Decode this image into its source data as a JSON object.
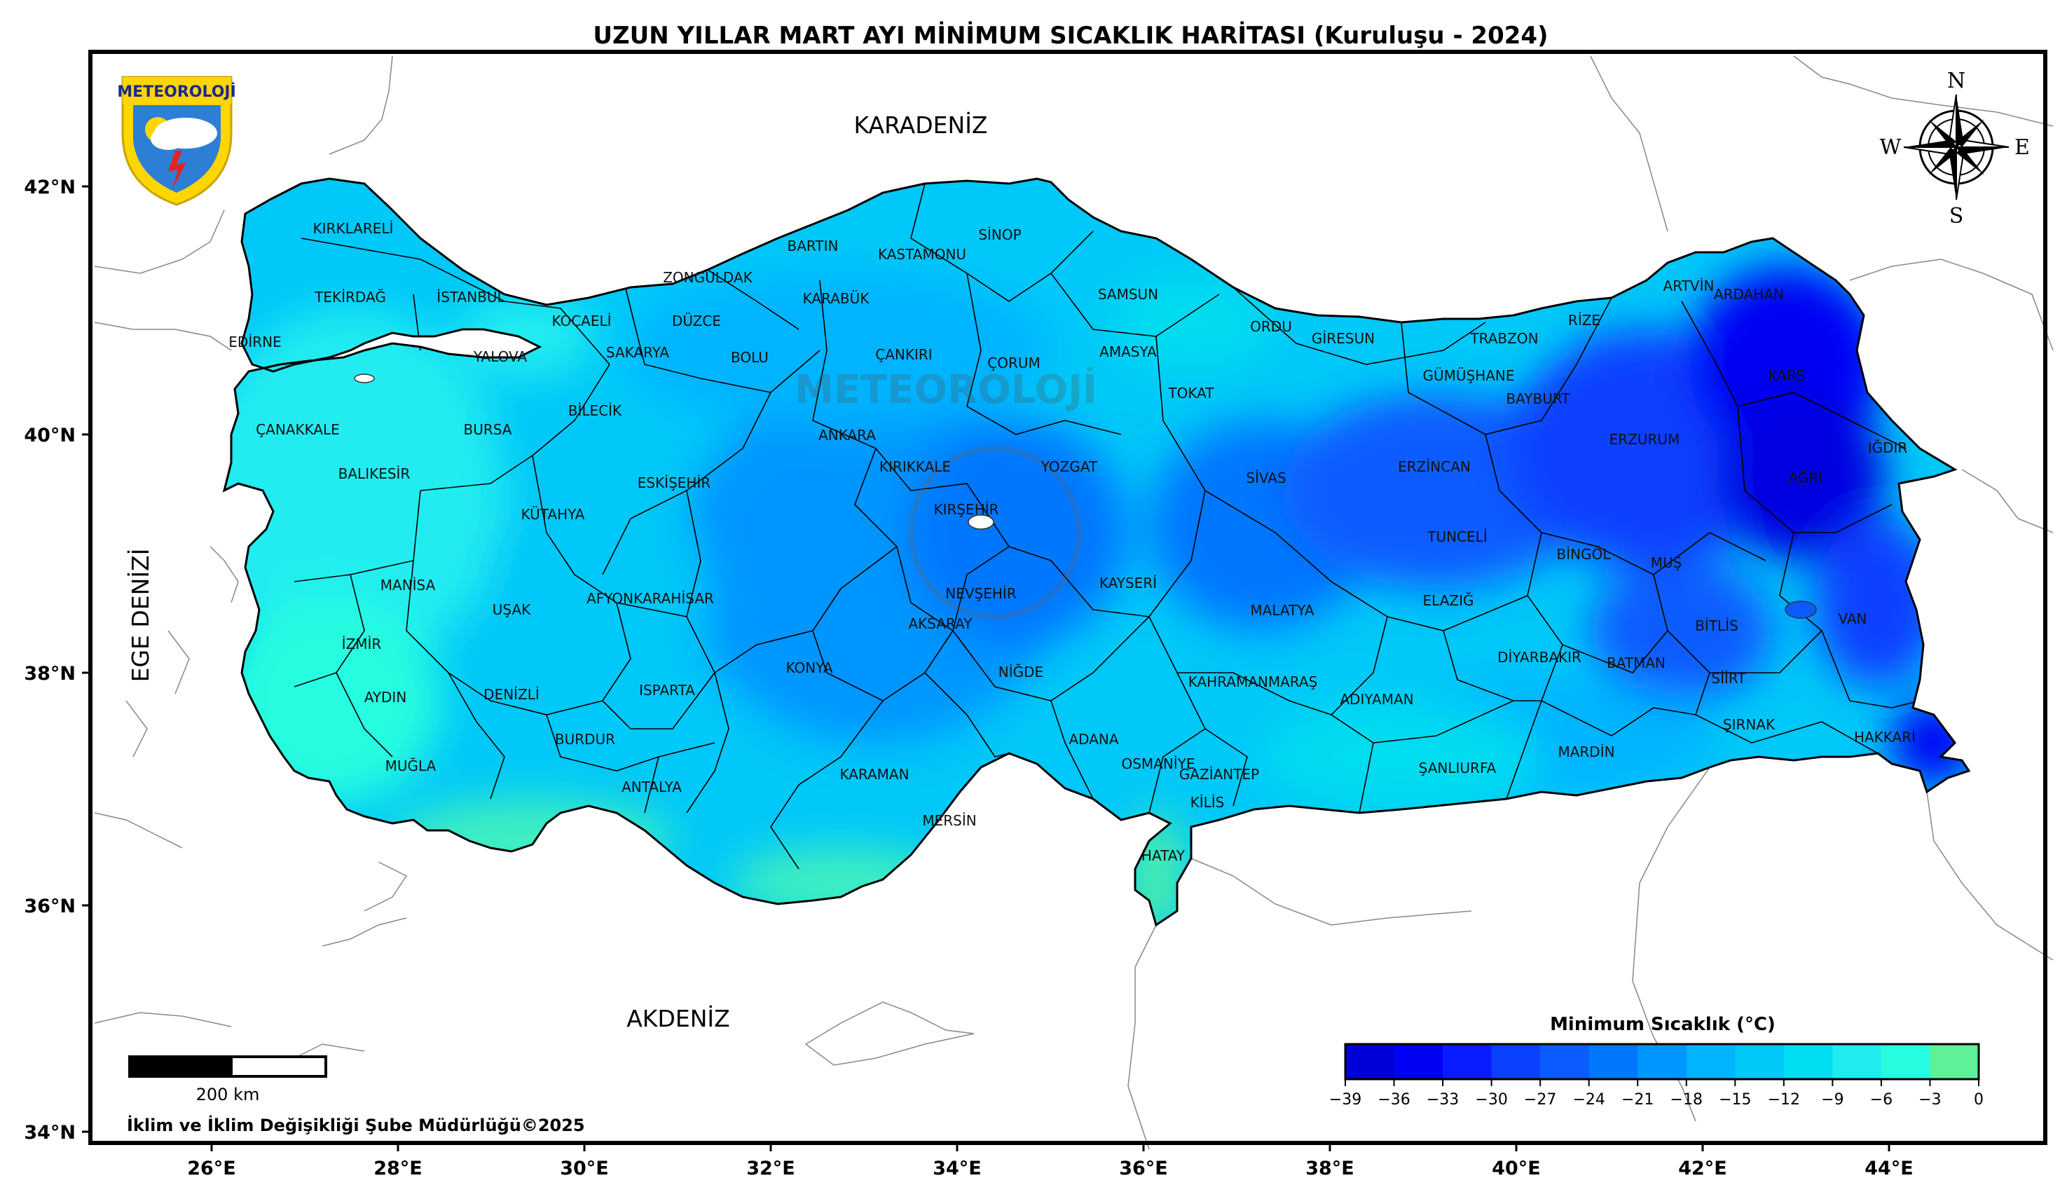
{
  "title": "UZUN YILLAR MART AYI MİNİMUM SICAKLIK HARİTASI (Kuruluşu - 2024)",
  "logo": {
    "text": "METEOROLOJİ",
    "watermark": "METEOROLOJİ"
  },
  "seas": {
    "north": "KARADENİZ",
    "west": "EGE DENİZİ",
    "south": "AKDENİZ"
  },
  "compass": {
    "n": "N",
    "s": "S",
    "e": "E",
    "w": "W"
  },
  "lat_ticks": [
    "42°N",
    "40°N",
    "38°N",
    "36°N",
    "34°N"
  ],
  "lon_ticks": [
    "26°E",
    "28°E",
    "30°E",
    "32°E",
    "34°E",
    "36°E",
    "38°E",
    "40°E",
    "42°E",
    "44°E"
  ],
  "scale_bar": {
    "label": "200 km"
  },
  "credit": "İklim ve İklim Değişikliği Şube Müdürlüğü©2025",
  "colorbar": {
    "title": "Minimum Sıcaklık (°C)",
    "ticks": [
      "−39",
      "−36",
      "−33",
      "−30",
      "−27",
      "−24",
      "−21",
      "−18",
      "−15",
      "−12",
      "−9",
      "−6",
      "−3",
      "0"
    ],
    "colors": [
      "#0000d8",
      "#0000f4",
      "#0a1cff",
      "#0a40ff",
      "#0a5cff",
      "#0077ff",
      "#0096ff",
      "#00b4ff",
      "#00c8f8",
      "#00dcf0",
      "#20ecf0",
      "#28fce0",
      "#60f098"
    ]
  },
  "provinces": [
    "KIRKLARELİ",
    "TEKİRDAĞ",
    "EDİRNE",
    "İSTANBUL",
    "YALOVA",
    "KOCAELİ",
    "SAKARYA",
    "DÜZCE",
    "BOLU",
    "ZONGULDAK",
    "BARTIN",
    "KARABÜK",
    "KASTAMONU",
    "SİNOP",
    "SAMSUN",
    "ÇANKIRI",
    "ÇORUM",
    "AMASYA",
    "TOKAT",
    "ORDU",
    "GİRESUN",
    "TRABZON",
    "RİZE",
    "ARTVİN",
    "ARDAHAN",
    "KARS",
    "IĞDIR",
    "AĞRI",
    "GÜMÜŞHANE",
    "BAYBURT",
    "ERZURUM",
    "ERZİNCAN",
    "SİVAS",
    "YOZGAT",
    "KIRIKKALE",
    "ANKARA",
    "KIRŞEHİR",
    "NEVŞEHİR",
    "KAYSERİ",
    "AKSARAY",
    "NİĞDE",
    "KONYA",
    "KARAMAN",
    "MERSİN",
    "ADANA",
    "OSMANİYE",
    "HATAY",
    "KİLİS",
    "GAZİANTEP",
    "ŞANLIURFA",
    "MARDİN",
    "KAHRAMANMARAŞ",
    "ADIYAMAN",
    "MALATYA",
    "ELAZIĞ",
    "TUNCELİ",
    "BİNGÖL",
    "MUŞ",
    "BİTLİS",
    "VAN",
    "HAKKARİ",
    "ŞIRNAK",
    "SİİRT",
    "BATMAN",
    "DİYARBAKIR",
    "ÇANAKKALE",
    "BALIKESİR",
    "BURSA",
    "BİLECİK",
    "ESKİŞEHİR",
    "KÜTAHYA",
    "MANİSA",
    "İZMİR",
    "AYDIN",
    "MUĞLA",
    "DENİZLİ",
    "UŞAK",
    "AFYONKARAHİSAR",
    "ISPARTA",
    "BURDUR",
    "ANTALYA"
  ]
}
